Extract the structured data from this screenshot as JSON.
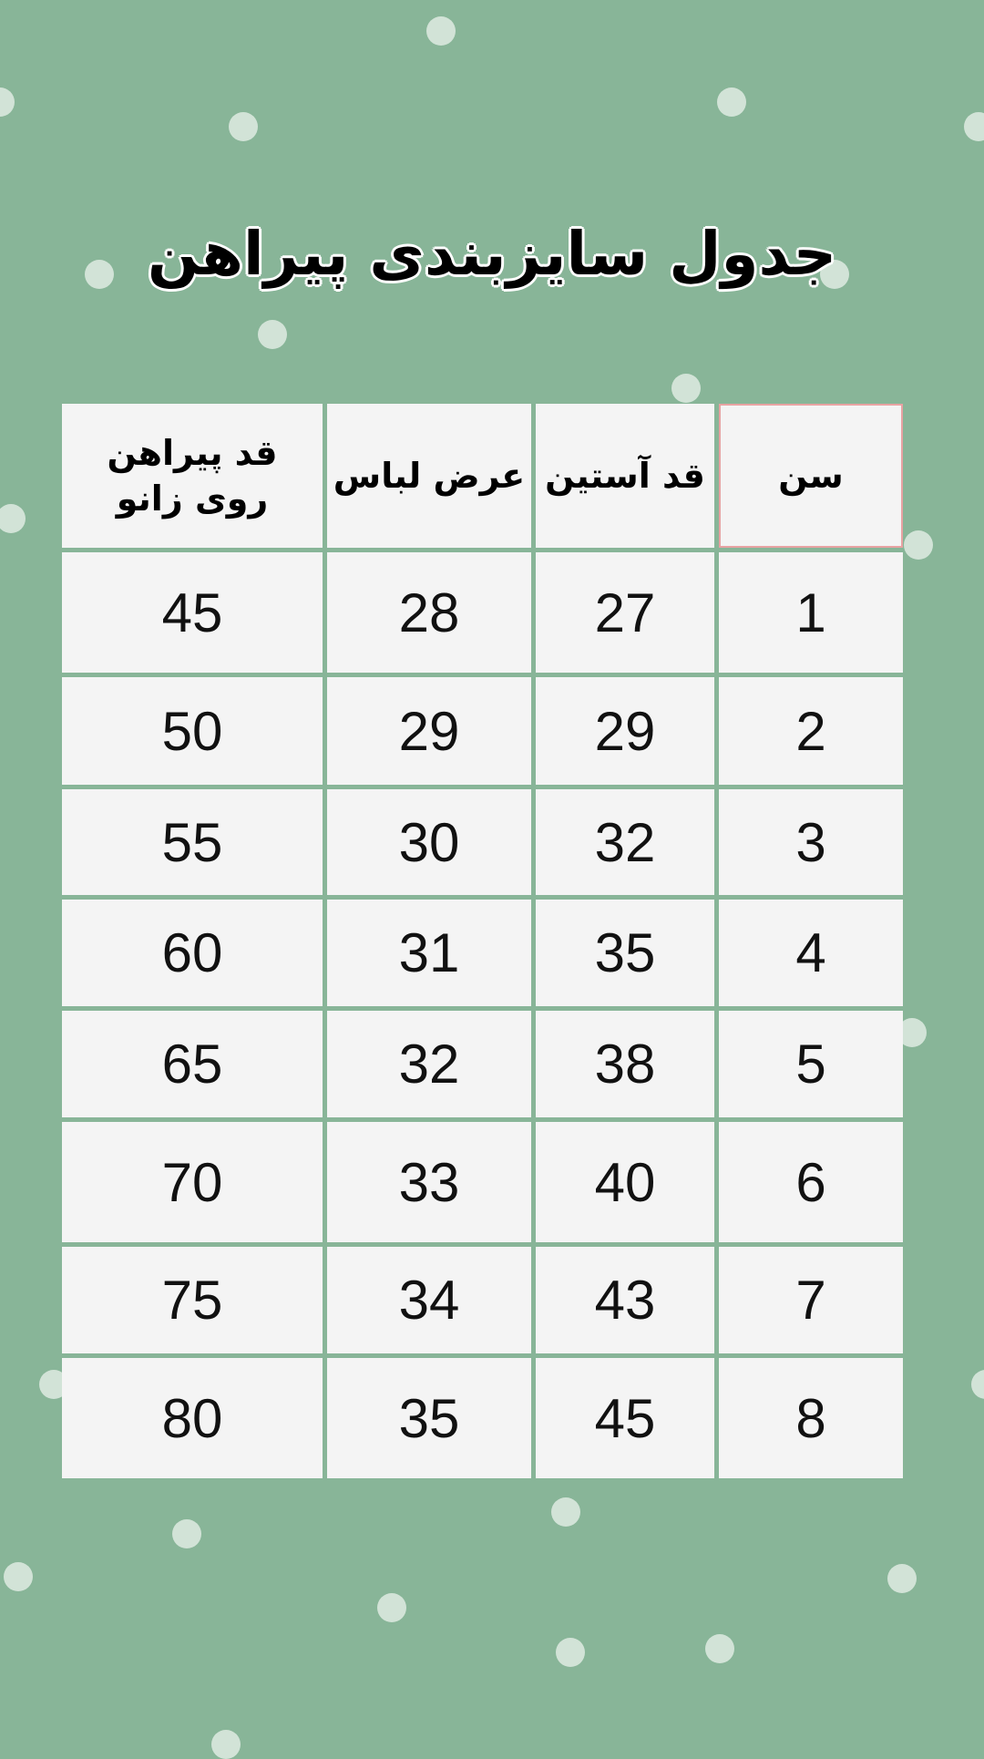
{
  "title": "جدول سایزبندی پیراهن",
  "table": {
    "headers": [
      "سن",
      "قد  آستین",
      "عرض لباس",
      "قد  پیراهن روی زانو"
    ],
    "rows": [
      [
        "1",
        "27",
        "28",
        "45"
      ],
      [
        "2",
        "29",
        "29",
        "50"
      ],
      [
        "3",
        "32",
        "30",
        "55"
      ],
      [
        "4",
        "35",
        "31",
        "60"
      ],
      [
        "5",
        "38",
        "32",
        "65"
      ],
      [
        "6",
        "40",
        "33",
        "70"
      ],
      [
        "7",
        "43",
        "34",
        "75"
      ],
      [
        "8",
        "45",
        "35",
        "80"
      ]
    ]
  },
  "colors": {
    "background": "#88b598",
    "cell": "#f4f4f4",
    "dots": "#d2e3d7"
  }
}
